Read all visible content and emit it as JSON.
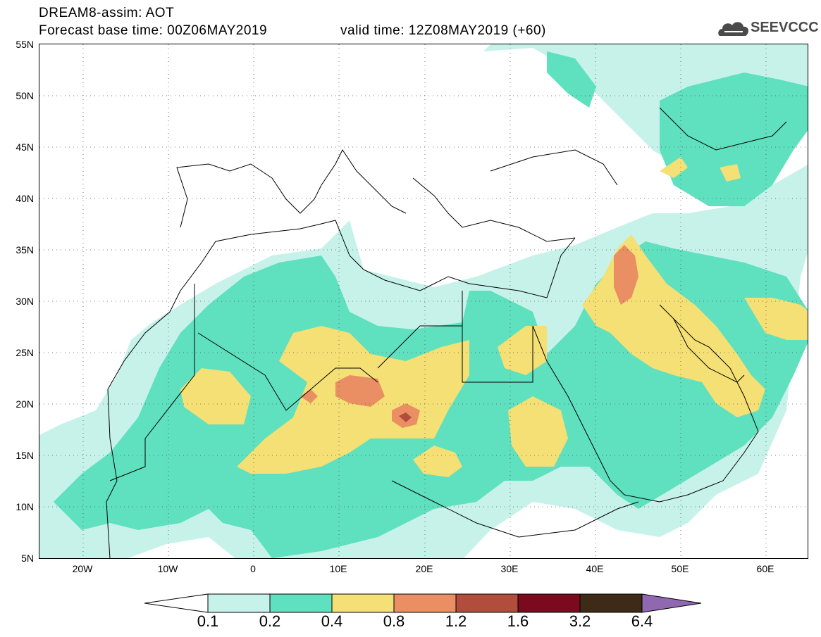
{
  "header": {
    "title": "DREAM8-assim: AOT",
    "base_time": "Forecast base time: 00Z06MAY2019",
    "valid_time": "valid time: 12Z08MAY2019 (+60)"
  },
  "logo": {
    "text": "SEEVCCC",
    "icon": "cloud-icon"
  },
  "map": {
    "type": "dust-aerosol-optical-thickness-map",
    "lon_range": [
      "25W",
      "65E"
    ],
    "lat_range": [
      "5N",
      "55N"
    ],
    "lat_labels": [
      "55N",
      "50N",
      "45N",
      "40N",
      "35N",
      "30N",
      "25N",
      "20N",
      "15N",
      "10N",
      "5N"
    ],
    "lon_labels": [
      "20W",
      "10W",
      "0",
      "10E",
      "20E",
      "30E",
      "40E",
      "50E",
      "60E"
    ],
    "grid": "dotted"
  },
  "colorbar": {
    "labels": [
      "0.1",
      "0.2",
      "0.4",
      "0.8",
      "1.2",
      "1.6",
      "3.2",
      "6.4"
    ],
    "colors": [
      "#c6f2ea",
      "#5fe0bf",
      "#f4e074",
      "#ea8f64",
      "#b24c3c",
      "#7c0a1f",
      "#3d2a17",
      "#8f68b0"
    ]
  }
}
